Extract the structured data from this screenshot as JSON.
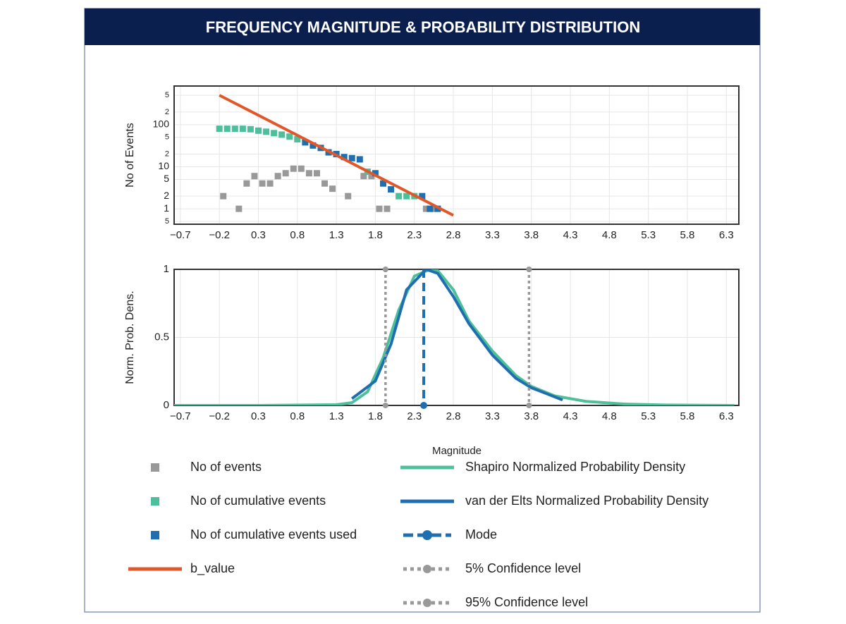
{
  "title": "FREQUENCY MAGNITUDE & PROBABILITY DISTRIBUTION",
  "chart_data": [
    {
      "type": "scatter",
      "ylabel": "No of Events",
      "ylog": true,
      "grid": true,
      "xlim": [
        -0.78,
        6.46
      ],
      "ylim": [
        0.43,
        830
      ],
      "xticks": [
        {
          "value": -0.7,
          "label": "−0.7"
        },
        {
          "value": -0.2,
          "label": "−0.2"
        },
        0.3,
        0.8,
        1.3,
        1.8,
        2.3,
        2.8,
        3.3,
        3.8,
        4.3,
        4.8,
        5.3,
        5.8,
        6.3
      ],
      "yticks": [
        {
          "value": 500,
          "label": "5"
        },
        {
          "value": 200,
          "label": "2"
        },
        100,
        {
          "value": 50,
          "label": "5"
        },
        {
          "value": 20,
          "label": "2"
        },
        10,
        5,
        2,
        1,
        {
          "value": 0.5,
          "label": "5"
        }
      ],
      "series": [
        {
          "name": "No of events",
          "color": "#999999",
          "style": "square",
          "x": [
            -0.15,
            0.05,
            0.15,
            0.25,
            0.35,
            0.45,
            0.55,
            0.65,
            0.75,
            0.85,
            0.95,
            1.05,
            1.15,
            1.25,
            1.45,
            1.65,
            1.75,
            1.85,
            1.95,
            2.45,
            2.55
          ],
          "values": [
            2,
            1,
            4,
            6,
            4,
            4,
            6,
            7,
            9,
            9,
            7,
            7,
            4,
            3,
            2,
            6,
            6,
            1,
            1,
            1,
            1
          ]
        },
        {
          "name": "No of cumulative events",
          "color": "#4dbf9a",
          "style": "square",
          "x": [
            -0.2,
            -0.1,
            0.0,
            0.1,
            0.2,
            0.3,
            0.4,
            0.5,
            0.6,
            0.7,
            0.8,
            1.7,
            2.1,
            2.2,
            2.3
          ],
          "values": [
            80,
            80,
            80,
            80,
            78,
            72,
            68,
            63,
            58,
            52,
            45,
            7.6,
            2,
            2,
            2
          ]
        },
        {
          "name": "No of cumulative events used",
          "color": "#1f6fb0",
          "style": "square",
          "x": [
            0.9,
            1.0,
            1.1,
            1.2,
            1.3,
            1.4,
            1.5,
            1.6,
            1.8,
            1.9,
            2.0,
            2.4,
            2.5,
            2.6
          ],
          "values": [
            38,
            32,
            28,
            22,
            20,
            17,
            16,
            15,
            7,
            4,
            2.9,
            2,
            1,
            1
          ]
        },
        {
          "name": "b_value",
          "color": "#e0572a",
          "style": "line",
          "x": [
            -0.2,
            2.8
          ],
          "values": [
            500,
            0.7
          ]
        }
      ]
    },
    {
      "type": "line",
      "ylabel": "Norm. Prob. Dens.",
      "xlabel": "Magnitude",
      "grid": true,
      "xlim": [
        -0.78,
        6.46
      ],
      "ylim": [
        0,
        1.0
      ],
      "xticks": [
        {
          "value": -0.7,
          "label": "−0.7"
        },
        {
          "value": -0.2,
          "label": "−0.2"
        },
        0.3,
        0.8,
        1.3,
        1.8,
        2.3,
        2.8,
        3.3,
        3.8,
        4.3,
        4.8,
        5.3,
        5.8,
        6.3
      ],
      "yticks": [
        0,
        0.5,
        1
      ],
      "series": [
        {
          "name": "Shapiro Normalized Probability Density",
          "color": "#4dbf9a",
          "style": "line",
          "x": [
            -0.78,
            0.3,
            1.3,
            1.5,
            1.7,
            1.9,
            2.1,
            2.3,
            2.5,
            2.6,
            2.8,
            3.0,
            3.3,
            3.6,
            3.8,
            4.1,
            4.5,
            5.0,
            5.5,
            6.4
          ],
          "values": [
            0,
            0,
            0.005,
            0.02,
            0.1,
            0.35,
            0.7,
            0.95,
            1,
            0.99,
            0.85,
            0.62,
            0.4,
            0.22,
            0.14,
            0.07,
            0.03,
            0.01,
            0.003,
            0
          ]
        },
        {
          "name": "van der Elts Normalized Probability Density",
          "color": "#1f6fb0",
          "style": "line",
          "x": [
            1.5,
            1.8,
            2.0,
            2.2,
            2.45,
            2.6,
            2.8,
            3.0,
            3.3,
            3.6,
            3.8,
            4.2
          ],
          "values": [
            0.05,
            0.18,
            0.45,
            0.85,
            1,
            0.97,
            0.8,
            0.6,
            0.37,
            0.2,
            0.13,
            0.04
          ]
        },
        {
          "name": "Mode",
          "color": "#1f6fb0",
          "style": "dashed",
          "x": 2.42
        },
        {
          "name": "5% Confidence level",
          "color": "#999999",
          "style": "dotted",
          "x": 1.93
        },
        {
          "name": "95% Confidence level",
          "color": "#999999",
          "style": "dotted",
          "x": 3.77
        }
      ]
    }
  ]
}
